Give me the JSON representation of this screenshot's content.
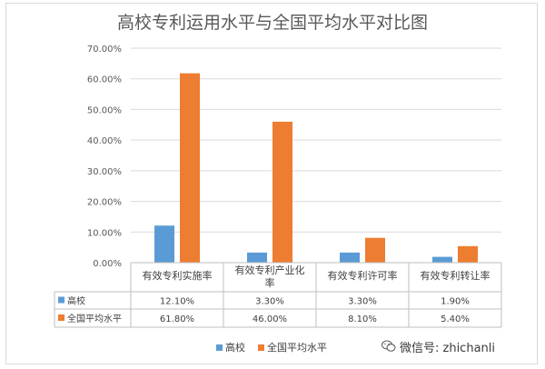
{
  "chart_data": {
    "type": "bar",
    "title": "高校专利运用水平与全国平均水平对比图",
    "categories": [
      "有效专利实施率",
      "有效专利产业化率",
      "有效专利许可率",
      "有效专利转让率"
    ],
    "category_lines": [
      [
        "有效专利实施率"
      ],
      [
        "有效专利产业化",
        "率"
      ],
      [
        "有效专利许可率"
      ],
      [
        "有效专利转让率"
      ]
    ],
    "series": [
      {
        "name": "高校",
        "color": "#5b9bd5",
        "values": [
          12.1,
          3.3,
          3.3,
          1.9
        ],
        "labels": [
          "12.10%",
          "3.30%",
          "3.30%",
          "1.90%"
        ]
      },
      {
        "name": "全国平均水平",
        "color": "#ed7d31",
        "values": [
          61.8,
          46.0,
          8.1,
          5.4
        ],
        "labels": [
          "61.80%",
          "46.00%",
          "8.10%",
          "5.40%"
        ]
      }
    ],
    "y_ticks": [
      "0.00%",
      "10.00%",
      "20.00%",
      "30.00%",
      "40.00%",
      "50.00%",
      "60.00%",
      "70.00%"
    ],
    "ylim": [
      0,
      70
    ],
    "grid": true,
    "data_table": true,
    "legend_position": "bottom"
  },
  "watermark": {
    "icon": "wechat-icon",
    "text": "微信号: zhichanli"
  }
}
